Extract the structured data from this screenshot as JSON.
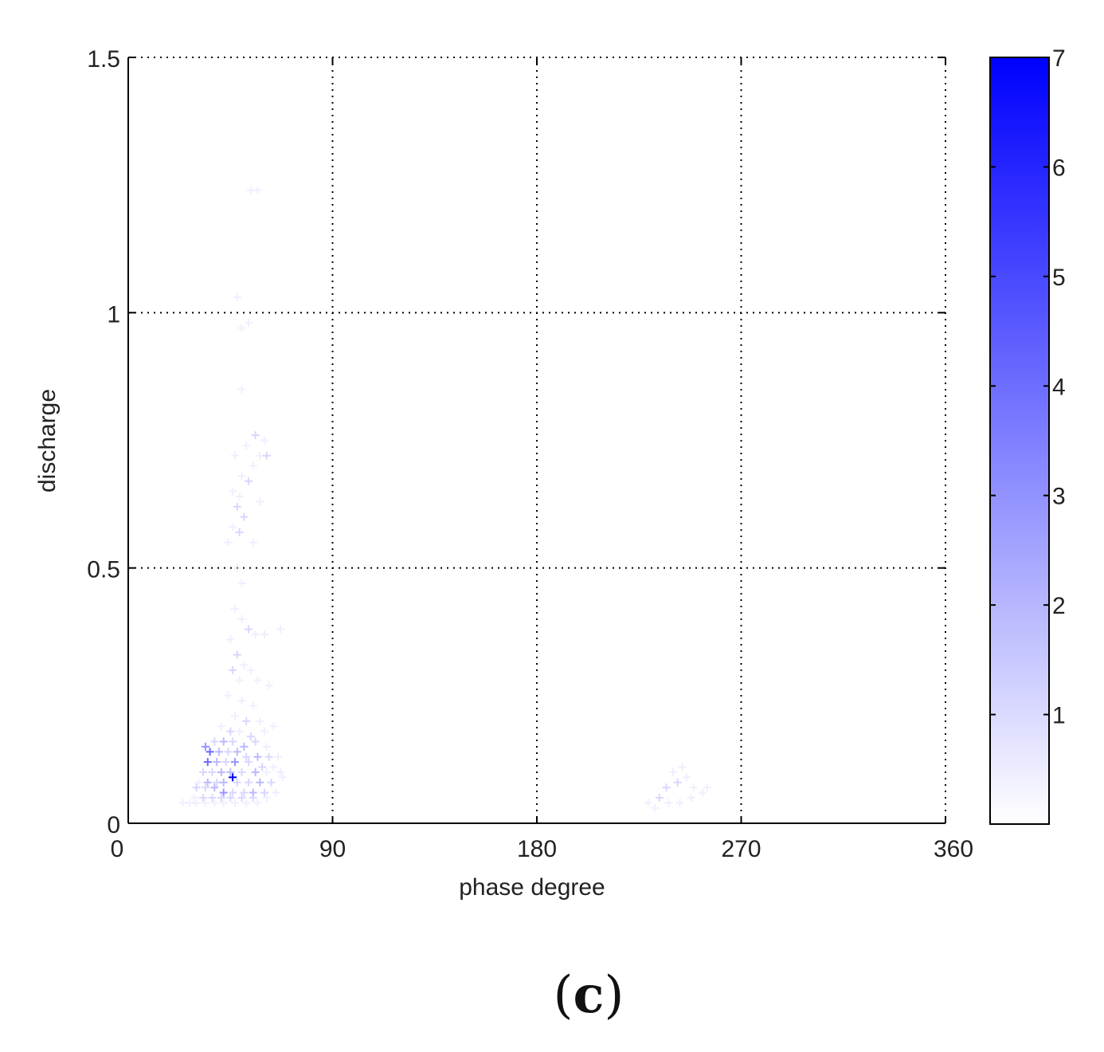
{
  "chart_data": {
    "type": "scatter",
    "title": "",
    "xlabel": "phase degree",
    "ylabel": "discharge",
    "xlim": [
      0,
      360
    ],
    "ylim": [
      0,
      1.5
    ],
    "xticks": [
      0,
      90,
      180,
      270,
      360
    ],
    "xtick_labels": [
      "0",
      "90",
      "180",
      "270",
      "360"
    ],
    "yticks": [
      0,
      0.5,
      1,
      1.5
    ],
    "ytick_labels": [
      "0",
      "0.5",
      "1",
      "1.5"
    ],
    "grid": true,
    "marker": "plus",
    "colorbar": {
      "range": [
        0,
        7
      ],
      "ticks": [
        1,
        2,
        3,
        4,
        5,
        6,
        7
      ],
      "tick_labels": [
        "1",
        "2",
        "3",
        "4",
        "5",
        "6",
        "7"
      ],
      "color_low": "#ffffff",
      "color_high": "#0000ff"
    },
    "points": [
      [
        54,
        1.24,
        1
      ],
      [
        57,
        1.24,
        1
      ],
      [
        48,
        1.03,
        1
      ],
      [
        50,
        0.97,
        1
      ],
      [
        53,
        0.98,
        1
      ],
      [
        50,
        0.85,
        1
      ],
      [
        56,
        0.76,
        2
      ],
      [
        60,
        0.75,
        1
      ],
      [
        52,
        0.74,
        1
      ],
      [
        47,
        0.72,
        1
      ],
      [
        55,
        0.7,
        1
      ],
      [
        58,
        0.72,
        1
      ],
      [
        61,
        0.72,
        2
      ],
      [
        50,
        0.68,
        1
      ],
      [
        53,
        0.67,
        2
      ],
      [
        46,
        0.65,
        1
      ],
      [
        49,
        0.64,
        1
      ],
      [
        58,
        0.63,
        1
      ],
      [
        48,
        0.62,
        2
      ],
      [
        51,
        0.6,
        2
      ],
      [
        46,
        0.58,
        1
      ],
      [
        49,
        0.57,
        2
      ],
      [
        44,
        0.55,
        1
      ],
      [
        55,
        0.55,
        1
      ],
      [
        48,
        0.5,
        1
      ],
      [
        50,
        0.47,
        1
      ],
      [
        47,
        0.42,
        1
      ],
      [
        50,
        0.4,
        1
      ],
      [
        53,
        0.38,
        2
      ],
      [
        56,
        0.37,
        1
      ],
      [
        60,
        0.37,
        1
      ],
      [
        67,
        0.38,
        1
      ],
      [
        45,
        0.36,
        1
      ],
      [
        48,
        0.33,
        2
      ],
      [
        51,
        0.31,
        1
      ],
      [
        46,
        0.3,
        2
      ],
      [
        54,
        0.3,
        1
      ],
      [
        49,
        0.28,
        1
      ],
      [
        57,
        0.28,
        1
      ],
      [
        62,
        0.27,
        1
      ],
      [
        44,
        0.25,
        1
      ],
      [
        50,
        0.24,
        1
      ],
      [
        55,
        0.23,
        1
      ],
      [
        47,
        0.21,
        1
      ],
      [
        52,
        0.2,
        2
      ],
      [
        58,
        0.2,
        1
      ],
      [
        41,
        0.19,
        1
      ],
      [
        45,
        0.18,
        2
      ],
      [
        49,
        0.18,
        1
      ],
      [
        54,
        0.17,
        2
      ],
      [
        60,
        0.18,
        1
      ],
      [
        64,
        0.19,
        1
      ],
      [
        38,
        0.16,
        2
      ],
      [
        42,
        0.16,
        3
      ],
      [
        46,
        0.16,
        2
      ],
      [
        51,
        0.15,
        3
      ],
      [
        56,
        0.16,
        2
      ],
      [
        61,
        0.15,
        1
      ],
      [
        34,
        0.15,
        4
      ],
      [
        36,
        0.14,
        5
      ],
      [
        40,
        0.14,
        3
      ],
      [
        44,
        0.14,
        2
      ],
      [
        48,
        0.14,
        3
      ],
      [
        52,
        0.13,
        2
      ],
      [
        57,
        0.13,
        3
      ],
      [
        62,
        0.13,
        2
      ],
      [
        66,
        0.13,
        1
      ],
      [
        35,
        0.12,
        5
      ],
      [
        39,
        0.12,
        3
      ],
      [
        43,
        0.12,
        2
      ],
      [
        47,
        0.12,
        4
      ],
      [
        53,
        0.12,
        2
      ],
      [
        59,
        0.11,
        2
      ],
      [
        64,
        0.11,
        1
      ],
      [
        33,
        0.1,
        2
      ],
      [
        37,
        0.1,
        2
      ],
      [
        41,
        0.1,
        3
      ],
      [
        45,
        0.1,
        3
      ],
      [
        50,
        0.1,
        2
      ],
      [
        56,
        0.1,
        3
      ],
      [
        61,
        0.1,
        1
      ],
      [
        67,
        0.1,
        1
      ],
      [
        46,
        0.09,
        7
      ],
      [
        31,
        0.08,
        1
      ],
      [
        35,
        0.08,
        3
      ],
      [
        39,
        0.08,
        2
      ],
      [
        42,
        0.08,
        3
      ],
      [
        48,
        0.08,
        2
      ],
      [
        53,
        0.08,
        2
      ],
      [
        58,
        0.08,
        3
      ],
      [
        63,
        0.08,
        2
      ],
      [
        68,
        0.09,
        1
      ],
      [
        30,
        0.07,
        2
      ],
      [
        34,
        0.07,
        2
      ],
      [
        38,
        0.07,
        3
      ],
      [
        42,
        0.06,
        4
      ],
      [
        46,
        0.06,
        2
      ],
      [
        51,
        0.06,
        2
      ],
      [
        55,
        0.06,
        3
      ],
      [
        60,
        0.06,
        2
      ],
      [
        65,
        0.06,
        1
      ],
      [
        29,
        0.05,
        1
      ],
      [
        33,
        0.05,
        2
      ],
      [
        37,
        0.05,
        2
      ],
      [
        41,
        0.05,
        2
      ],
      [
        45,
        0.05,
        2
      ],
      [
        50,
        0.05,
        2
      ],
      [
        55,
        0.05,
        2
      ],
      [
        61,
        0.05,
        1
      ],
      [
        24,
        0.04,
        1
      ],
      [
        27,
        0.04,
        1
      ],
      [
        30,
        0.04,
        1
      ],
      [
        34,
        0.04,
        1
      ],
      [
        38,
        0.04,
        1
      ],
      [
        42,
        0.04,
        1
      ],
      [
        47,
        0.04,
        1
      ],
      [
        52,
        0.04,
        1
      ],
      [
        57,
        0.04,
        1
      ],
      [
        234,
        0.05,
        2
      ],
      [
        229,
        0.04,
        1
      ],
      [
        237,
        0.07,
        2
      ],
      [
        242,
        0.08,
        2
      ],
      [
        246,
        0.09,
        1
      ],
      [
        244,
        0.11,
        1
      ],
      [
        240,
        0.1,
        1
      ],
      [
        249,
        0.07,
        1
      ],
      [
        253,
        0.06,
        1
      ],
      [
        232,
        0.03,
        1
      ],
      [
        238,
        0.04,
        1
      ],
      [
        243,
        0.04,
        1
      ],
      [
        248,
        0.05,
        1
      ],
      [
        255,
        0.07,
        1
      ]
    ]
  },
  "figure": {
    "panel_label": "c"
  }
}
